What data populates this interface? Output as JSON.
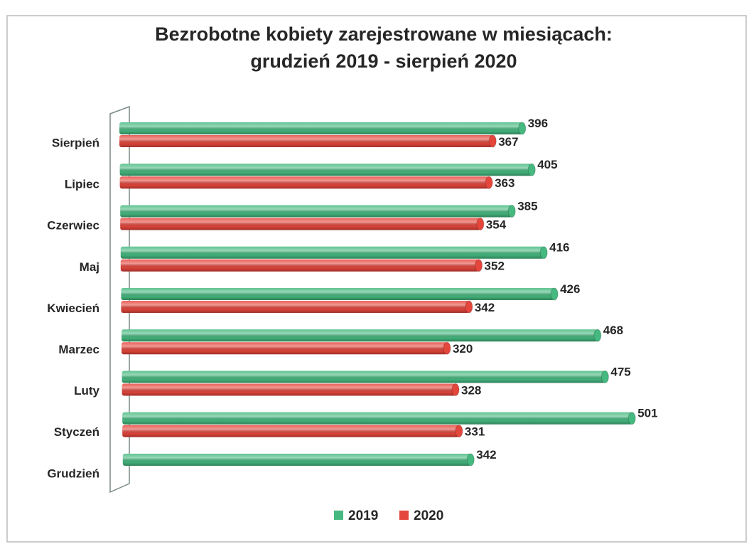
{
  "chart_data": {
    "type": "hbar3d",
    "title": "Bezrobotne kobiety zarejestrowane w miesiącach:",
    "subtitle": "grudzień 2019 - sierpień 2020",
    "categories": [
      "Sierpień",
      "Lipiec",
      "Czerwiec",
      "Maj",
      "Kwiecień",
      "Marzec",
      "Luty",
      "Styczeń",
      "Grudzień"
    ],
    "series": [
      {
        "name": "2019",
        "color": "#45b97f",
        "values": [
          396,
          405,
          385,
          416,
          426,
          468,
          475,
          501,
          342
        ]
      },
      {
        "name": "2020",
        "color": "#e5463c",
        "values": [
          367,
          363,
          354,
          352,
          342,
          320,
          328,
          331,
          null
        ]
      }
    ],
    "legend": "bottom"
  }
}
